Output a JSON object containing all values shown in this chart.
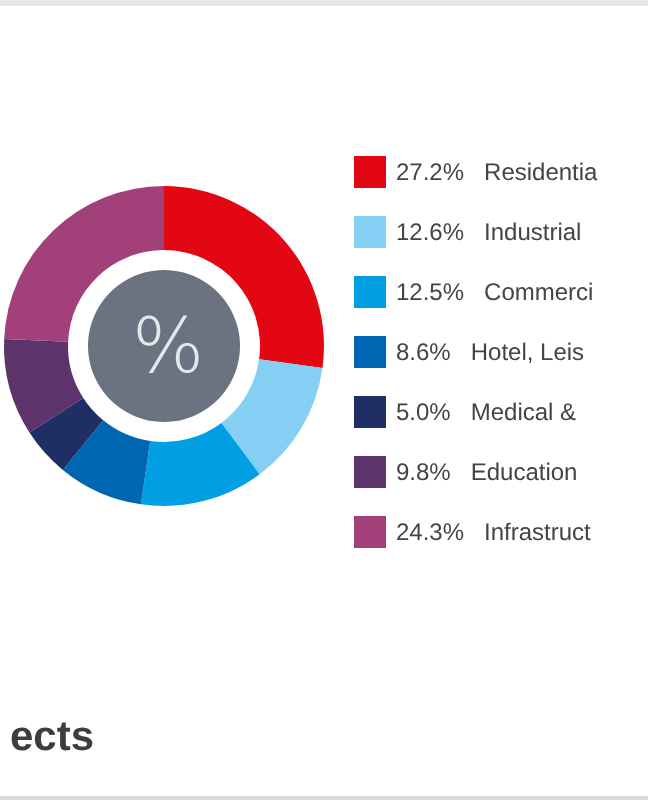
{
  "chart_data": {
    "type": "donut",
    "title": "ects",
    "annotations": [
      "%"
    ],
    "categories": [
      "Residentia",
      "Industrial",
      "Commerci",
      "Hotel, Leis",
      "Medical &",
      "Education",
      "Infrastruct"
    ],
    "values": [
      27.2,
      12.6,
      12.5,
      8.6,
      5.0,
      9.8,
      24.3
    ],
    "value_labels": [
      "27.2%",
      "12.6%",
      "12.5%",
      "8.6%",
      "5.0%",
      "9.8%",
      "24.3%"
    ],
    "colors": [
      "#e30613",
      "#84cff3",
      "#009fe3",
      "#0066b3",
      "#1f2f66",
      "#5c336b",
      "#a2407a"
    ],
    "legend": "right"
  }
}
